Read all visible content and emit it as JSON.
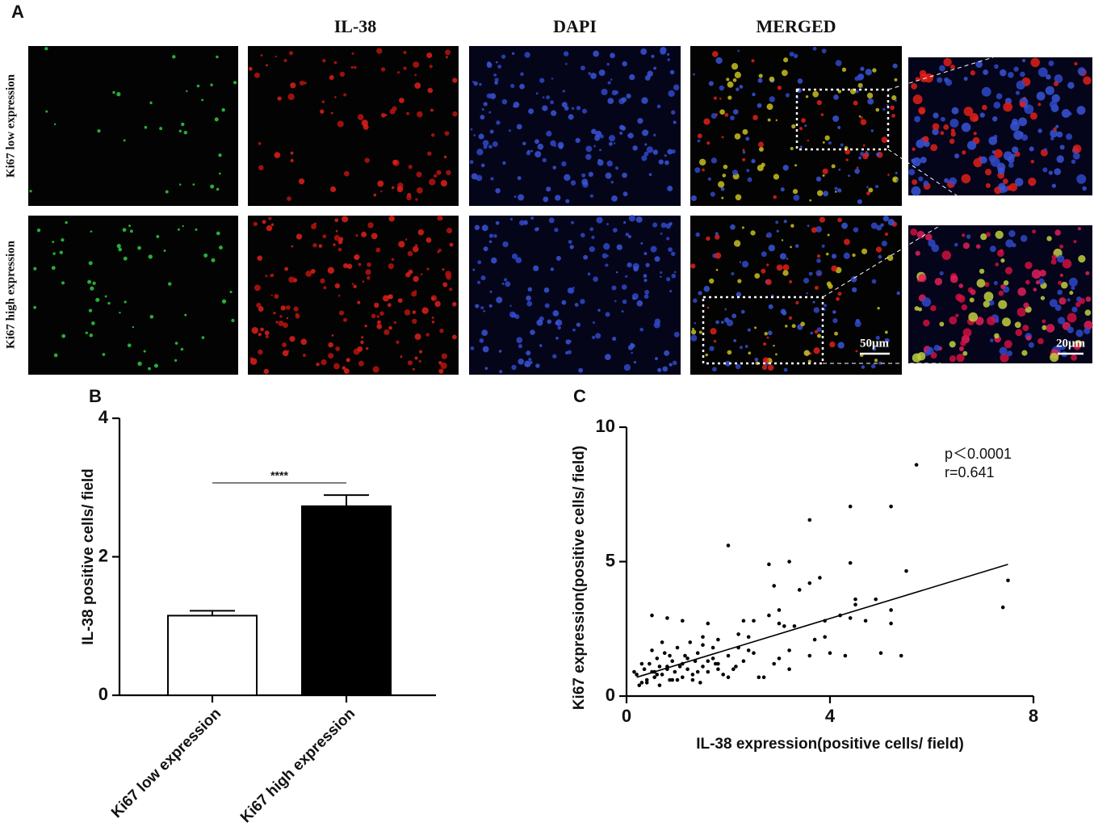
{
  "panel_a": {
    "label": "A",
    "columns": [
      "IL-38",
      "DAPI",
      "MERGED"
    ],
    "rows": [
      "Ki67 low expression",
      "Ki67 high expression"
    ],
    "scale_bars": [
      "50μm",
      "20μm"
    ]
  },
  "chart_data": [
    {
      "type": "bar",
      "panel_label": "B",
      "ylabel": "IL-38 positive cells/ field",
      "categories": [
        "Ki67 low expression",
        "Ki67 high expression"
      ],
      "values": [
        1.15,
        2.73
      ],
      "errors": [
        0.07,
        0.16
      ],
      "colors": [
        "#ffffff",
        "#000000"
      ],
      "ylim": [
        0,
        4
      ],
      "yticks": [
        0,
        2,
        4
      ],
      "significance": "****"
    },
    {
      "type": "scatter",
      "panel_label": "C",
      "xlabel": "IL-38 expression(positive cells/ field)",
      "ylabel": "Ki67 expression(positive cells/ field)",
      "xlim": [
        0,
        8
      ],
      "ylim": [
        0,
        10
      ],
      "xticks": [
        0,
        4,
        8
      ],
      "yticks": [
        0,
        5,
        10
      ],
      "color": "#000000",
      "annotations": [
        "p＜0.0001",
        "r=0.641"
      ],
      "x": [
        0.2,
        0.3,
        0.35,
        0.4,
        0.45,
        0.5,
        0.55,
        0.6,
        0.65,
        0.7,
        0.75,
        0.8,
        0.85,
        0.9,
        0.95,
        1.0,
        1.05,
        1.1,
        1.15,
        1.2,
        1.25,
        1.3,
        1.35,
        1.4,
        1.5,
        1.6,
        1.7,
        1.8,
        1.9,
        2.0,
        2.1,
        2.2,
        2.3,
        0.3,
        0.5,
        0.7,
        0.9,
        1.1,
        1.3,
        1.5,
        1.7,
        0.4,
        0.6,
        0.8,
        1.0,
        1.2,
        1.4,
        1.6,
        1.8,
        2.0,
        2.5,
        2.4,
        0.25,
        0.55,
        0.85,
        1.45,
        1.75,
        2.15,
        0.15,
        0.65,
        5.7,
        4.4,
        5.2,
        3.6,
        2.0,
        3.2,
        2.8,
        4.4,
        5.5,
        3.8,
        3.6,
        2.9,
        7.5,
        7.4,
        3.4,
        4.5,
        4.5,
        4.9,
        5.2,
        4.2,
        4.4,
        4.7,
        3.9,
        5.2,
        3.3,
        3.1,
        3.0,
        2.8,
        3.0,
        2.3,
        2.5,
        1.6,
        1.1,
        0.5,
        0.8,
        4.0,
        5.0,
        5.4,
        4.3,
        3.6,
        3.2,
        2.9,
        2.6,
        2.7,
        3.9,
        3.7,
        3.2,
        3.0,
        2.4,
        2.2,
        1.8,
        1.5
      ],
      "y": [
        0.8,
        0.5,
        1.0,
        0.6,
        1.2,
        0.9,
        0.7,
        1.4,
        1.1,
        0.8,
        1.6,
        1.0,
        0.6,
        1.3,
        0.9,
        1.8,
        1.1,
        0.7,
        1.5,
        1.0,
        2.0,
        0.8,
        1.3,
        1.6,
        1.1,
        0.9,
        1.4,
        1.2,
        0.8,
        1.5,
        1.0,
        1.8,
        1.3,
        1.2,
        1.7,
        2.0,
        0.6,
        1.2,
        0.6,
        2.2,
        1.8,
        0.5,
        0.8,
        1.1,
        0.6,
        1.4,
        0.9,
        1.3,
        1.0,
        0.7,
        1.6,
        2.2,
        0.4,
        0.9,
        1.5,
        0.5,
        1.2,
        1.1,
        0.9,
        0.4,
        8.6,
        7.05,
        7.05,
        6.55,
        5.6,
        5.0,
        4.9,
        4.95,
        4.65,
        4.4,
        4.2,
        4.1,
        4.3,
        3.3,
        3.95,
        3.6,
        3.4,
        3.6,
        3.2,
        3.0,
        2.9,
        2.8,
        2.8,
        2.7,
        2.6,
        2.6,
        2.7,
        3.0,
        3.2,
        2.8,
        2.8,
        2.7,
        2.8,
        3.0,
        2.9,
        1.6,
        1.6,
        1.5,
        1.5,
        1.5,
        1.0,
        1.2,
        0.7,
        0.7,
        2.2,
        2.1,
        1.7,
        1.4,
        1.7,
        2.3,
        2.1,
        1.9
      ],
      "fit": {
        "x": [
          0.2,
          7.5
        ],
        "y": [
          0.7,
          4.9
        ]
      }
    }
  ]
}
